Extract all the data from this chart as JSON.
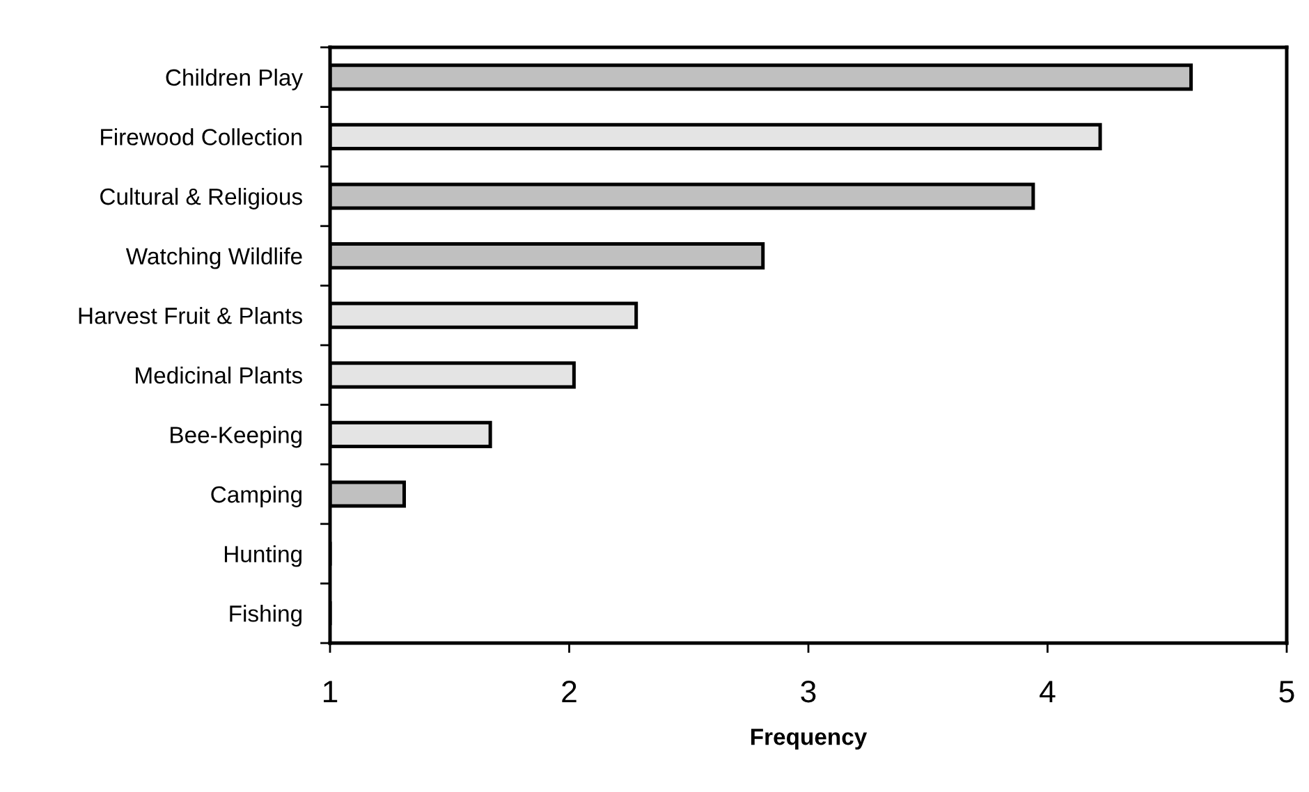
{
  "chart_data": {
    "type": "bar",
    "orientation": "horizontal",
    "xlabel": "Frequency",
    "categories": [
      "Children Play",
      "Firewood Collection",
      "Cultural & Religious",
      "Watching Wildlife",
      "Harvest Fruit & Plants",
      "Medicinal Plants",
      "Bee-Keeping",
      "Camping",
      "Hunting",
      "Fishing"
    ],
    "values": [
      4.6,
      4.22,
      3.94,
      2.81,
      2.28,
      2.02,
      1.67,
      1.31,
      1,
      1
    ],
    "colors": [
      "#c0c0c0",
      "#e4e4e4",
      "#c0c0c0",
      "#c0c0c0",
      "#e4e4e4",
      "#e4e4e4",
      "#e4e4e4",
      "#c0c0c0",
      "#c0c0c0",
      "#c0c0c0"
    ],
    "xlim": [
      1,
      5
    ],
    "xticks": [
      1,
      2,
      3,
      4,
      5
    ],
    "grid": false,
    "legend": false
  }
}
